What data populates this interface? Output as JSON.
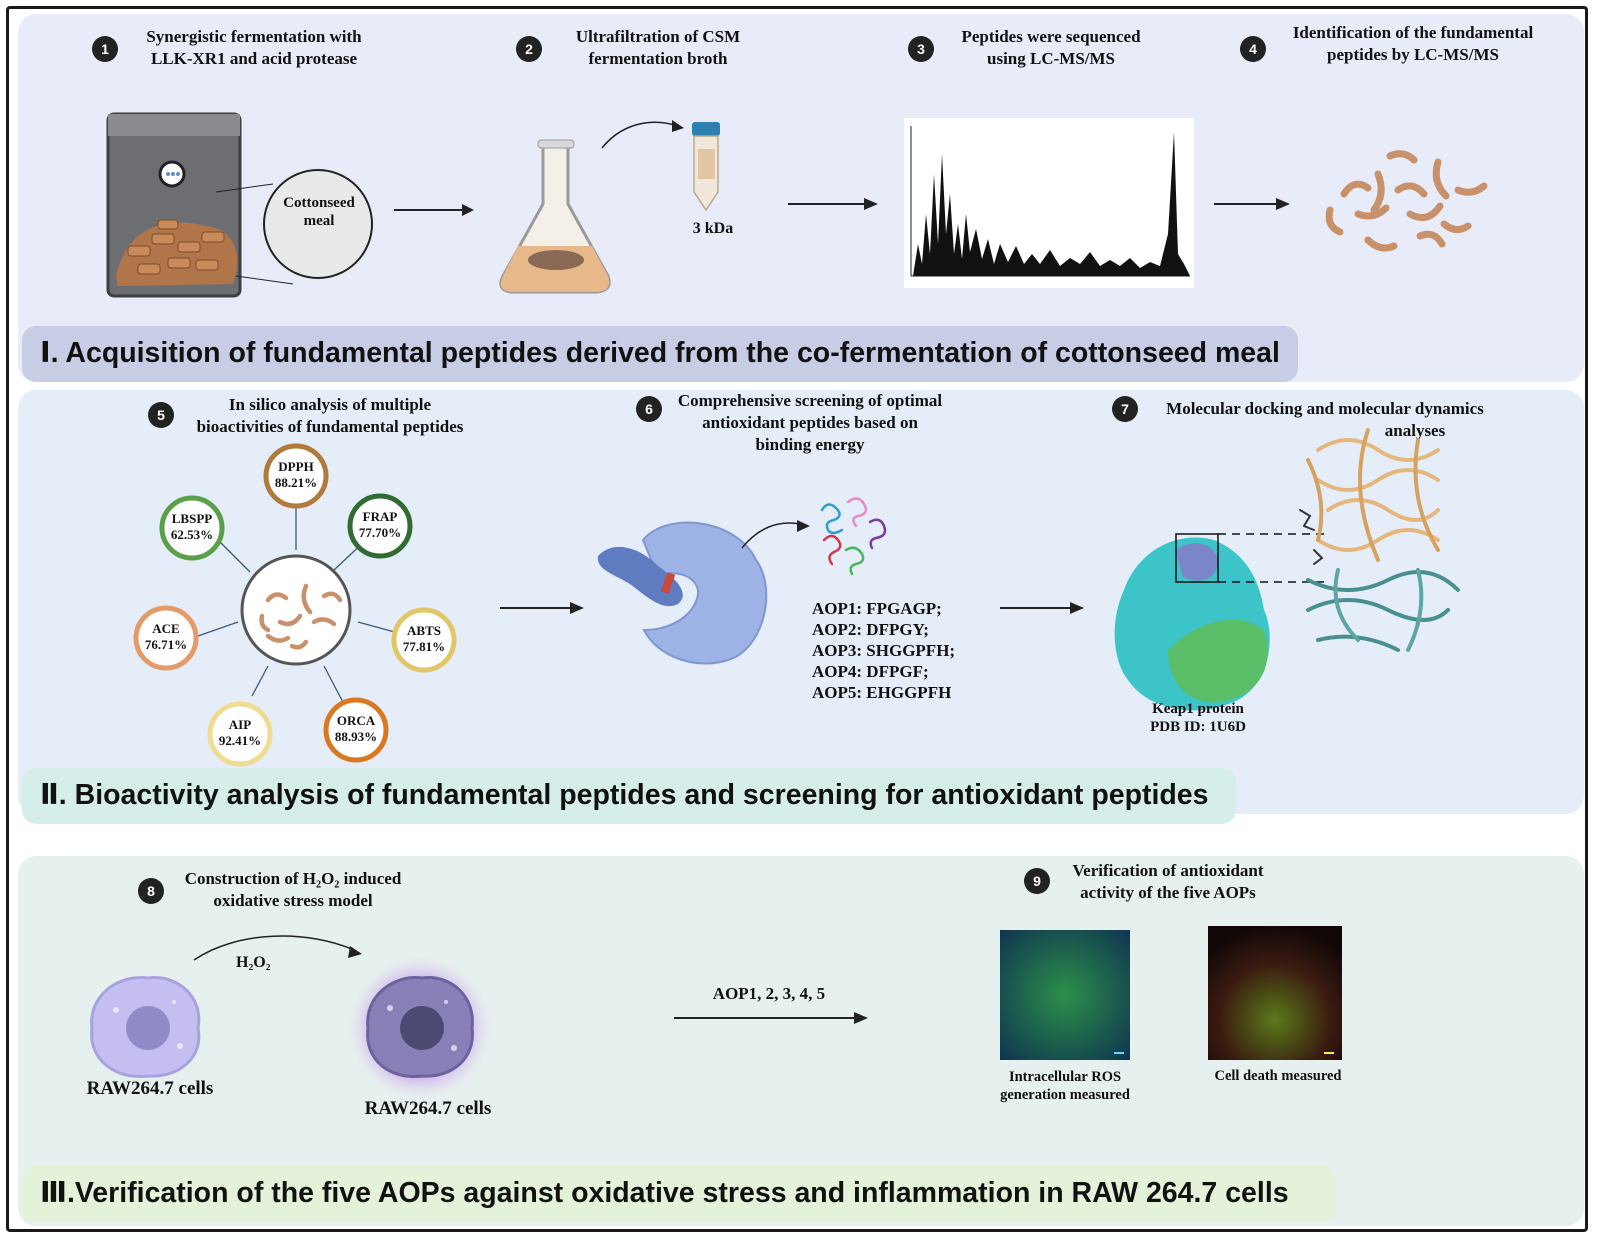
{
  "panels": {
    "p1": {
      "banner": "Ⅰ. Acquisition of fundamental peptides derived from the co-fermentation of cottonseed meal",
      "steps": [
        {
          "num": "1",
          "text_a": "Synergistic fermentation with",
          "text_b": "LLK-XR1 and acid protease"
        },
        {
          "num": "2",
          "text_a": "Ultrafiltration of CSM",
          "text_b": "fermentation broth"
        },
        {
          "num": "3",
          "text_a": "Peptides were sequenced",
          "text_b": "using LC-MS/MS"
        },
        {
          "num": "4",
          "text_a": "Identification of the fundamental",
          "text_b": "peptides by LC-MS/MS"
        }
      ],
      "cottonseed_label_a": "Cottonseed",
      "cottonseed_label_b": "meal",
      "kda_label": "3 kDa"
    },
    "p2": {
      "banner": "Ⅱ. Bioactivity analysis of fundamental peptides and screening for antioxidant peptides",
      "steps": [
        {
          "num": "5",
          "text_a": "In silico analysis of multiple",
          "text_b": "bioactivities of fundamental peptides"
        },
        {
          "num": "6",
          "text_a": "Comprehensive screening of optimal",
          "text_b": "antioxidant peptides based on",
          "text_c": "binding energy"
        },
        {
          "num": "7",
          "text_a": "Molecular docking and molecular dynamics",
          "text_b": "analyses"
        }
      ],
      "bioactivities": [
        {
          "name": "DPPH",
          "value": "88.21%",
          "color": "#b07a3c"
        },
        {
          "name": "FRAP",
          "value": "77.70%",
          "color": "#2f6b32"
        },
        {
          "name": "ABTS",
          "value": "77.81%",
          "color": "#e2c76a"
        },
        {
          "name": "ORCA",
          "value": "88.93%",
          "color": "#d97820"
        },
        {
          "name": "AIP",
          "value": "92.41%",
          "color": "#f0dc90"
        },
        {
          "name": "ACE",
          "value": "76.71%",
          "color": "#e59a6a"
        },
        {
          "name": "LBSPP",
          "value": "62.53%",
          "color": "#5aa04a"
        }
      ],
      "aops": [
        "AOP1: FPGAGP;",
        "AOP2: DFPGY;",
        "AOP3: SHGGPFH;",
        "AOP4: DFPGF;",
        "AOP5: EHGGPFH"
      ],
      "keap1_a": "Keap1 protein",
      "keap1_b": "PDB ID: 1U6D"
    },
    "p3": {
      "banner": "Ⅲ.Verification of the five AOPs against oxidative stress and inflammation in RAW 264.7 cells",
      "steps": [
        {
          "num": "8",
          "text_a": "Construction of H₂O₂ induced",
          "text_b": "oxidative stress model"
        },
        {
          "num": "9",
          "text_a": "Verification of antioxidant",
          "text_b": "activity of the five AOPs"
        }
      ],
      "h2o2": "H₂O₂",
      "cells_a": "RAW264.7 cells",
      "cells_b": "RAW264.7 cells",
      "aop_treat": "AOP1, 2, 3, 4, 5",
      "ros_a": "Intracellular ROS",
      "ros_b": "generation measured",
      "death": "Cell death measured"
    }
  }
}
